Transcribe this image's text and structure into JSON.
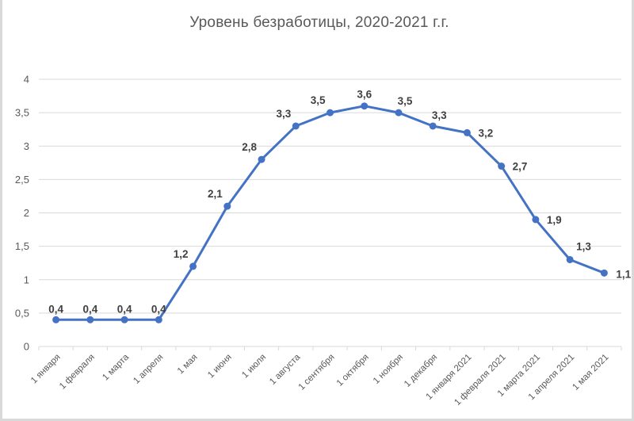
{
  "chart_data": {
    "type": "line",
    "title": "Уровень безработицы,  2020-2021 г.г.",
    "xlabel": "",
    "ylabel": "",
    "ylim": [
      0,
      4
    ],
    "yticks": [
      0,
      0.5,
      1,
      1.5,
      2,
      2.5,
      3,
      3.5,
      4
    ],
    "ytick_labels": [
      "0",
      "0,5",
      "1",
      "1,5",
      "2",
      "2,5",
      "3",
      "3,5",
      "4"
    ],
    "grid": true,
    "legend": null,
    "categories": [
      "1 января",
      "1 февраля",
      "1 марта",
      "1 апреля",
      "1 мая",
      "1 июня",
      "1 июля",
      "1 августа",
      "1 сентября",
      "1 октября",
      "1 ноября",
      "1 декабря",
      "1 января 2021",
      "1 февраля 2021",
      "1 марта 2021",
      "1 апреля 2021",
      "1 мая 2021"
    ],
    "series": [
      {
        "name": "Уровень безработицы",
        "color": "#4472c4",
        "values": [
          0.4,
          0.4,
          0.4,
          0.4,
          1.2,
          2.1,
          2.8,
          3.3,
          3.5,
          3.6,
          3.5,
          3.3,
          3.2,
          2.7,
          1.9,
          1.3,
          1.1
        ],
        "data_labels": [
          "0,4",
          "0,4",
          "0,4",
          "0,4",
          "1,2",
          "2,1",
          "2,8",
          "3,3",
          "3,5",
          "3,6",
          "3,5",
          "3,3",
          "3,2",
          "2,7",
          "1,9",
          "1,3",
          "1,1"
        ]
      }
    ]
  },
  "colors": {
    "line": "#4472c4",
    "grid": "#d9d9d9",
    "axis_text": "#595959",
    "label_text": "#404040",
    "border": "#d9d9d9"
  }
}
